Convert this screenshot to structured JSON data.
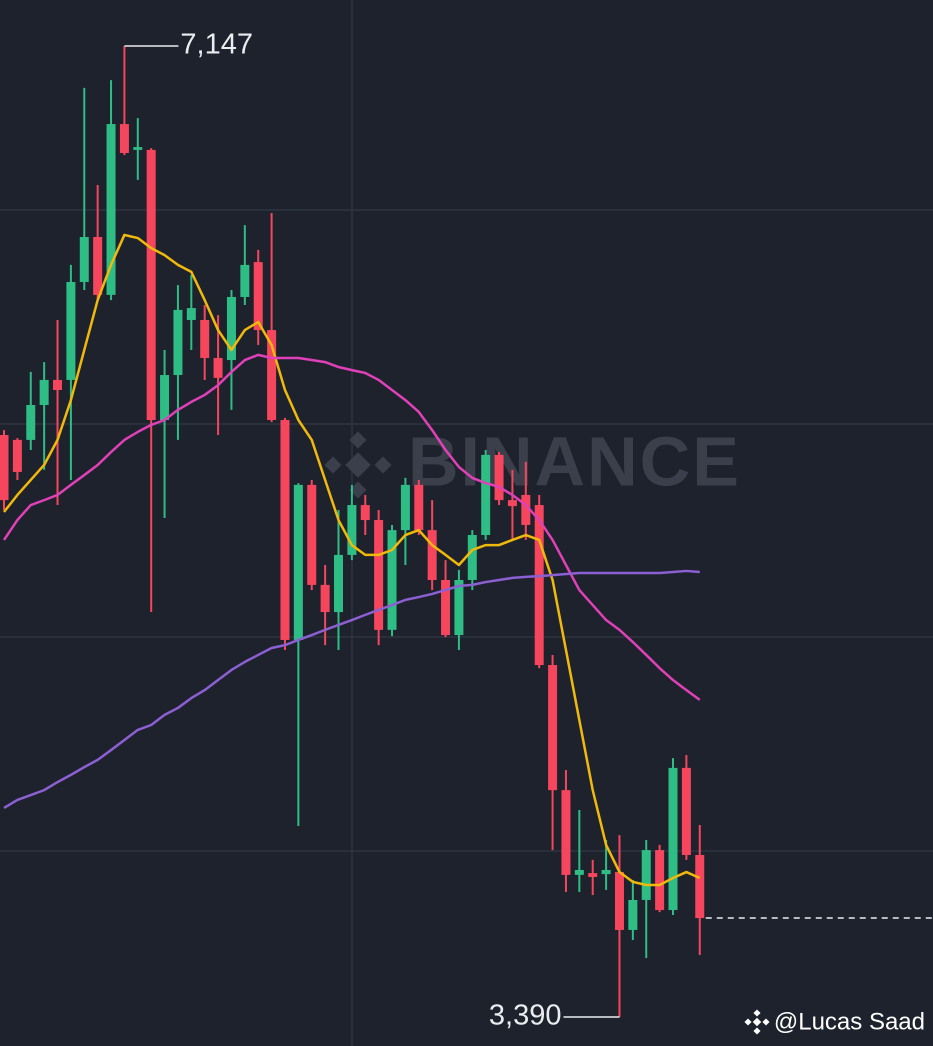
{
  "chart_data": {
    "type": "candlestick",
    "categories": [
      null,
      null,
      null,
      null,
      null,
      null,
      null,
      null,
      null,
      null,
      null,
      null,
      null,
      null,
      null,
      null,
      null,
      null,
      null,
      null,
      null,
      null,
      null,
      null,
      null,
      null,
      null,
      null,
      null,
      null,
      null,
      null,
      null,
      null,
      null,
      null,
      null,
      null,
      null,
      null,
      null,
      null,
      null,
      null,
      null,
      null,
      null,
      null,
      null,
      null,
      null,
      null,
      null
    ],
    "open": [
      5642,
      5623,
      5623,
      5758,
      5855,
      5855,
      6234,
      6408,
      6184,
      6845,
      6745,
      6745,
      5700,
      5874,
      6087,
      6087,
      5940,
      5932,
      6176,
      6311,
      6048,
      5700,
      4849,
      5449,
      5062,
      4957,
      5178,
      5371,
      5313,
      4888,
      5274,
      5449,
      5274,
      5081,
      4868,
      5081,
      5255,
      5565,
      5390,
      5410,
      5371,
      4752,
      4268,
      3940,
      3947,
      3943,
      3951,
      3727,
      3843,
      4036,
      3804,
      4354,
      4017
    ],
    "high": [
      5661,
      5630,
      5886,
      5924,
      6087,
      6300,
      6985,
      6609,
      7015,
      7147,
      6868,
      6752,
      5971,
      6222,
      6261,
      6145,
      6106,
      6203,
      6454,
      6358,
      6501,
      5708,
      5456,
      5468,
      5139,
      5352,
      5449,
      5410,
      5352,
      5294,
      5476,
      5468,
      5390,
      5158,
      5120,
      5274,
      5584,
      5576,
      5507,
      5538,
      5410,
      4791,
      4346,
      4191,
      3998,
      4075,
      4094,
      3920,
      4075,
      4056,
      4392,
      4404,
      4133
    ],
    "low": [
      5352,
      5468,
      5584,
      5507,
      5371,
      5468,
      6203,
      6164,
      6164,
      6725,
      6629,
      4957,
      5321,
      5623,
      5971,
      5855,
      5642,
      5739,
      6145,
      5990,
      5692,
      4810,
      4129,
      5042,
      4829,
      4810,
      5158,
      5255,
      4829,
      4864,
      5139,
      5255,
      5042,
      4860,
      4810,
      5042,
      5236,
      5371,
      5236,
      5236,
      4740,
      4036,
      3874,
      3874,
      3862,
      3882,
      3390,
      3688,
      3618,
      3796,
      3785,
      3998,
      3630
    ],
    "close": [
      5390,
      5499,
      5758,
      5855,
      5816,
      6234,
      6408,
      6184,
      6845,
      6733,
      6756,
      5700,
      5874,
      6126,
      6133,
      5940,
      5863,
      6176,
      6300,
      6048,
      5700,
      4849,
      5449,
      5062,
      4957,
      5178,
      5371,
      5313,
      4888,
      5274,
      5449,
      5274,
      5081,
      4868,
      5081,
      5255,
      5565,
      5390,
      5367,
      5294,
      4752,
      4268,
      3940,
      3959,
      3932,
      3959,
      3727,
      3843,
      4036,
      3804,
      4354,
      4017,
      3773
    ],
    "up_color": "#2ebd85",
    "down_color": "#f6465d",
    "series": [
      {
        "color": "#f0b90b",
        "values": [
          5344,
          5410,
          5468,
          5526,
          5623,
          5777,
          5971,
          6164,
          6300,
          6416,
          6404,
          6365,
          6338,
          6300,
          6273,
          6164,
          6048,
          5971,
          6048,
          6079,
          5990,
          5816,
          5700,
          5623,
          5468,
          5313,
          5216,
          5178,
          5178,
          5197,
          5255,
          5274,
          5216,
          5178,
          5139,
          5197,
          5216,
          5216,
          5236,
          5255,
          5236,
          5081,
          4810,
          4539,
          4268,
          4056,
          3951,
          3913,
          3901,
          3901,
          3928,
          3951,
          3928
        ]
      },
      {
        "color": "#e040b8",
        "values": [
          5236,
          5313,
          5371,
          5390,
          5410,
          5449,
          5487,
          5526,
          5576,
          5623,
          5654,
          5681,
          5700,
          5739,
          5770,
          5797,
          5835,
          5886,
          5932,
          5952,
          5940,
          5940,
          5940,
          5932,
          5924,
          5905,
          5893,
          5882,
          5855,
          5816,
          5777,
          5731,
          5661,
          5584,
          5518,
          5476,
          5456,
          5441,
          5410,
          5371,
          5313,
          5236,
          5139,
          5042,
          4984,
          4926,
          4888,
          4841,
          4791,
          4740,
          4694,
          4655,
          4617
        ]
      },
      {
        "color": "#8c5fd3",
        "values": [
          4199,
          4230,
          4249,
          4268,
          4299,
          4327,
          4357,
          4385,
          4423,
          4462,
          4501,
          4520,
          4559,
          4586,
          4624,
          4655,
          4694,
          4733,
          4764,
          4791,
          4818,
          4829,
          4849,
          4868,
          4888,
          4907,
          4926,
          4946,
          4965,
          4984,
          5004,
          5015,
          5027,
          5042,
          5058,
          5062,
          5073,
          5081,
          5089,
          5093,
          5096,
          5100,
          5104,
          5108,
          5108,
          5108,
          5108,
          5108,
          5108,
          5108,
          5112,
          5116,
          5112
        ]
      }
    ],
    "ylim": [
      3278,
      7325
    ],
    "annotations": [
      {
        "label": "7,147",
        "value": 7147
      },
      {
        "label": "3,390",
        "value": 3390
      }
    ]
  },
  "watermark": "BINANCE",
  "credit": "@Lucas Saad"
}
